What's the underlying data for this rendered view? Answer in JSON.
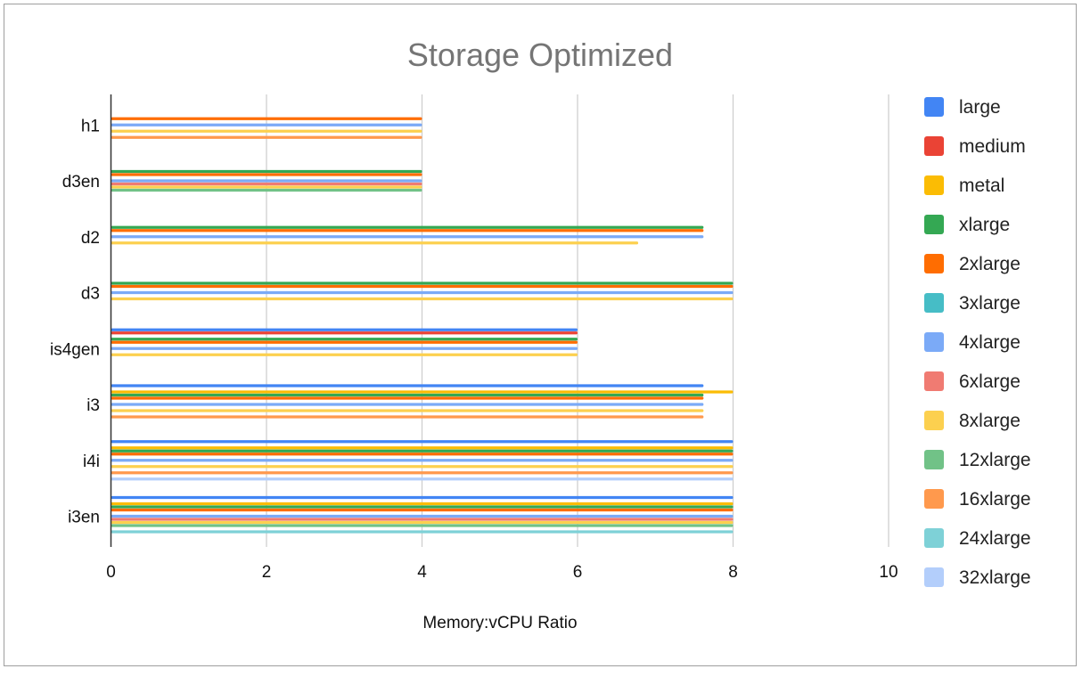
{
  "chart_data": {
    "type": "bar",
    "orientation": "horizontal",
    "title": "Storage Optimized",
    "xlabel": "Memory:vCPU Ratio",
    "ylabel": "",
    "xlim": [
      0,
      10
    ],
    "xticks": [
      "0",
      "2",
      "4",
      "6",
      "8",
      "10"
    ],
    "grid": true,
    "legend_position": "right",
    "categories": [
      "h1",
      "d3en",
      "d2",
      "d3",
      "is4gen",
      "i3",
      "i4i",
      "i3en"
    ],
    "series": [
      {
        "name": "large",
        "color": "#4285F4",
        "values": [
          null,
          null,
          null,
          null,
          6,
          7.62,
          8,
          8
        ]
      },
      {
        "name": "medium",
        "color": "#EA4335",
        "values": [
          null,
          null,
          null,
          null,
          6,
          null,
          null,
          null
        ]
      },
      {
        "name": "metal",
        "color": "#FBBC04",
        "values": [
          null,
          null,
          null,
          null,
          null,
          8,
          8,
          8
        ]
      },
      {
        "name": "xlarge",
        "color": "#34A853",
        "values": [
          null,
          4,
          7.62,
          8,
          6,
          7.62,
          8,
          8
        ]
      },
      {
        "name": "2xlarge",
        "color": "#FF6D01",
        "values": [
          4,
          4,
          7.62,
          8,
          6,
          7.62,
          8,
          8
        ]
      },
      {
        "name": "3xlarge",
        "color": "#46BDC6",
        "values": [
          null,
          null,
          null,
          null,
          null,
          null,
          null,
          null
        ]
      },
      {
        "name": "4xlarge",
        "color": "#7BAAF7",
        "values": [
          4,
          4,
          7.62,
          8,
          6,
          7.62,
          8,
          8
        ]
      },
      {
        "name": "6xlarge",
        "color": "#F07B72",
        "values": [
          null,
          4,
          null,
          null,
          null,
          null,
          null,
          8
        ]
      },
      {
        "name": "8xlarge",
        "color": "#FCD04F",
        "values": [
          4,
          4,
          6.78,
          8,
          6,
          7.62,
          8,
          8
        ]
      },
      {
        "name": "12xlarge",
        "color": "#71C287",
        "values": [
          null,
          4,
          null,
          null,
          null,
          null,
          null,
          8
        ]
      },
      {
        "name": "16xlarge",
        "color": "#FF994D",
        "values": [
          4,
          null,
          null,
          null,
          null,
          7.62,
          8,
          null
        ]
      },
      {
        "name": "24xlarge",
        "color": "#7ED1D7",
        "values": [
          null,
          null,
          null,
          null,
          null,
          null,
          null,
          8
        ]
      },
      {
        "name": "32xlarge",
        "color": "#B3CEFB",
        "values": [
          null,
          null,
          null,
          null,
          null,
          null,
          8,
          null
        ]
      }
    ]
  }
}
